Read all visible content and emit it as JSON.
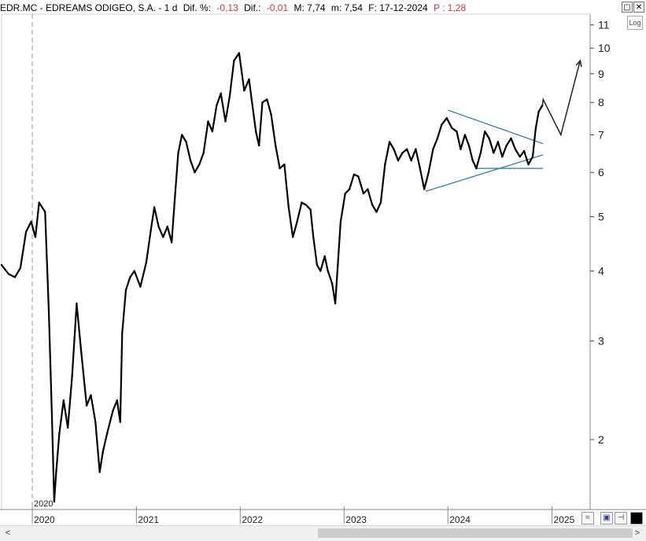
{
  "header": {
    "symbol": "EDR.MC - EDREAMS ODIGEO, S.A. -  1 d",
    "dif_pct_label": "Dif. %:",
    "dif_pct": "-0,13",
    "dif_label": "Dif.:",
    "dif": "-0,01",
    "max": "M: 7,74",
    "min": "m: 7,54",
    "date": "F: 17-12-2024",
    "price": "P : 1,28"
  },
  "controls": {
    "log_button": "Log",
    "window_buttons": [
      "▢",
      "✕"
    ]
  },
  "colors": {
    "price": "#000000",
    "trendline": "#1f78b4",
    "negative": "#e0303a",
    "grid": "#cccccc"
  },
  "chart_data": {
    "type": "line",
    "title": "",
    "xlabel": "",
    "ylabel": "",
    "log_scale": true,
    "ylim": [
      1.5,
      11.5
    ],
    "y_ticks": [
      2,
      3,
      4,
      5,
      6,
      7,
      8,
      9,
      10,
      11
    ],
    "x_ticks": [
      "2020",
      "2021",
      "2022",
      "2023",
      "2024",
      "2025"
    ],
    "x_tick_dates": [
      "2020-01-01",
      "2021-01-01",
      "2022-01-01",
      "2023-01-01",
      "2024-01-01",
      "2025-01-01"
    ],
    "x_marker_label": "2020",
    "xlim": [
      "2019-09-15",
      "2025-05-15"
    ],
    "grid": true,
    "series": [
      {
        "values": [
          [
            "2019-09-15",
            4.1
          ],
          [
            "2019-10-10",
            3.95
          ],
          [
            "2019-11-01",
            3.9
          ],
          [
            "2019-11-20",
            4.05
          ],
          [
            "2019-12-10",
            4.7
          ],
          [
            "2019-12-28",
            4.9
          ],
          [
            "2020-01-12",
            4.6
          ],
          [
            "2020-01-25",
            5.3
          ],
          [
            "2020-02-15",
            5.1
          ],
          [
            "2020-02-28",
            3.4
          ],
          [
            "2020-03-10",
            2.2
          ],
          [
            "2020-03-18",
            1.55
          ],
          [
            "2020-03-25",
            1.75
          ],
          [
            "2020-04-05",
            2.05
          ],
          [
            "2020-04-20",
            2.35
          ],
          [
            "2020-05-05",
            2.1
          ],
          [
            "2020-05-20",
            2.6
          ],
          [
            "2020-06-05",
            3.5
          ],
          [
            "2020-06-20",
            2.9
          ],
          [
            "2020-07-10",
            2.3
          ],
          [
            "2020-07-25",
            2.4
          ],
          [
            "2020-08-10",
            2.15
          ],
          [
            "2020-08-25",
            1.75
          ],
          [
            "2020-09-05",
            1.9
          ],
          [
            "2020-09-20",
            2.05
          ],
          [
            "2020-10-10",
            2.25
          ],
          [
            "2020-10-25",
            2.35
          ],
          [
            "2020-11-05",
            2.15
          ],
          [
            "2020-11-12",
            3.1
          ],
          [
            "2020-11-25",
            3.7
          ],
          [
            "2020-12-10",
            3.9
          ],
          [
            "2020-12-25",
            4.0
          ],
          [
            "2021-01-15",
            3.75
          ],
          [
            "2021-02-05",
            4.15
          ],
          [
            "2021-02-20",
            4.7
          ],
          [
            "2021-03-05",
            5.2
          ],
          [
            "2021-03-20",
            4.8
          ],
          [
            "2021-04-05",
            4.6
          ],
          [
            "2021-04-20",
            4.8
          ],
          [
            "2021-05-05",
            4.5
          ],
          [
            "2021-05-15",
            5.3
          ],
          [
            "2021-05-28",
            6.5
          ],
          [
            "2021-06-10",
            7.0
          ],
          [
            "2021-06-25",
            6.8
          ],
          [
            "2021-07-10",
            6.3
          ],
          [
            "2021-07-25",
            6.0
          ],
          [
            "2021-08-10",
            6.2
          ],
          [
            "2021-08-25",
            6.5
          ],
          [
            "2021-09-10",
            7.4
          ],
          [
            "2021-09-25",
            7.1
          ],
          [
            "2021-10-10",
            7.9
          ],
          [
            "2021-10-25",
            8.3
          ],
          [
            "2021-11-10",
            7.4
          ],
          [
            "2021-11-25",
            8.2
          ],
          [
            "2021-12-10",
            9.5
          ],
          [
            "2021-12-28",
            9.8
          ],
          [
            "2022-01-15",
            8.4
          ],
          [
            "2022-02-01",
            8.8
          ],
          [
            "2022-02-10",
            8.1
          ],
          [
            "2022-02-25",
            7.1
          ],
          [
            "2022-03-08",
            6.7
          ],
          [
            "2022-03-20",
            8.0
          ],
          [
            "2022-04-05",
            8.1
          ],
          [
            "2022-04-20",
            7.6
          ],
          [
            "2022-05-05",
            6.7
          ],
          [
            "2022-05-20",
            6.1
          ],
          [
            "2022-06-05",
            6.2
          ],
          [
            "2022-06-20",
            5.2
          ],
          [
            "2022-07-05",
            4.6
          ],
          [
            "2022-07-20",
            4.9
          ],
          [
            "2022-08-05",
            5.3
          ],
          [
            "2022-08-20",
            5.25
          ],
          [
            "2022-09-05",
            5.15
          ],
          [
            "2022-09-15",
            4.6
          ],
          [
            "2022-09-28",
            4.1
          ],
          [
            "2022-10-10",
            4.0
          ],
          [
            "2022-10-25",
            4.25
          ],
          [
            "2022-11-05",
            4.0
          ],
          [
            "2022-11-20",
            3.8
          ],
          [
            "2022-12-01",
            3.5
          ],
          [
            "2022-12-10",
            4.1
          ],
          [
            "2022-12-20",
            4.9
          ],
          [
            "2023-01-05",
            5.5
          ],
          [
            "2023-01-20",
            5.6
          ],
          [
            "2023-02-05",
            5.95
          ],
          [
            "2023-02-20",
            5.9
          ],
          [
            "2023-03-10",
            5.5
          ],
          [
            "2023-03-25",
            5.6
          ],
          [
            "2023-04-10",
            5.25
          ],
          [
            "2023-04-25",
            5.1
          ],
          [
            "2023-05-10",
            5.3
          ],
          [
            "2023-05-25",
            6.2
          ],
          [
            "2023-06-10",
            6.8
          ],
          [
            "2023-06-25",
            6.6
          ],
          [
            "2023-07-10",
            6.3
          ],
          [
            "2023-07-25",
            6.5
          ],
          [
            "2023-08-10",
            6.6
          ],
          [
            "2023-08-25",
            6.3
          ],
          [
            "2023-09-10",
            6.6
          ],
          [
            "2023-09-25",
            6.1
          ],
          [
            "2023-10-10",
            5.6
          ],
          [
            "2023-10-25",
            6.0
          ],
          [
            "2023-11-10",
            6.6
          ],
          [
            "2023-11-25",
            6.9
          ],
          [
            "2023-12-10",
            7.3
          ],
          [
            "2023-12-28",
            7.5
          ],
          [
            "2024-01-15",
            7.2
          ],
          [
            "2024-02-01",
            7.1
          ],
          [
            "2024-02-15",
            6.6
          ],
          [
            "2024-03-01",
            7.0
          ],
          [
            "2024-03-15",
            6.7
          ],
          [
            "2024-03-28",
            6.3
          ],
          [
            "2024-04-10",
            6.1
          ],
          [
            "2024-04-25",
            6.5
          ],
          [
            "2024-05-10",
            7.1
          ],
          [
            "2024-05-25",
            6.9
          ],
          [
            "2024-06-10",
            6.5
          ],
          [
            "2024-06-25",
            6.8
          ],
          [
            "2024-07-10",
            6.4
          ],
          [
            "2024-07-25",
            6.7
          ],
          [
            "2024-08-10",
            6.9
          ],
          [
            "2024-08-25",
            6.6
          ],
          [
            "2024-09-10",
            6.4
          ],
          [
            "2024-09-25",
            6.55
          ],
          [
            "2024-10-10",
            6.2
          ],
          [
            "2024-10-25",
            6.4
          ],
          [
            "2024-11-05",
            7.2
          ],
          [
            "2024-11-15",
            7.7
          ],
          [
            "2024-11-28",
            7.9
          ]
        ]
      }
    ],
    "annotations": {
      "upper_trendline": [
        [
          "2024-01-01",
          7.75
        ],
        [
          "2024-12-01",
          6.75
        ]
      ],
      "lower_trendline": [
        [
          "2023-10-15",
          5.55
        ],
        [
          "2024-12-01",
          6.45
        ]
      ],
      "support_line": [
        [
          "2024-04-10",
          6.1
        ],
        [
          "2024-12-01",
          6.1
        ]
      ],
      "projection": [
        [
          "2024-11-28",
          7.9
        ],
        [
          "2024-12-01",
          8.1
        ],
        [
          "2025-02-01",
          7.0
        ],
        [
          "2025-04-10",
          9.5
        ]
      ]
    }
  },
  "scrollbar": {
    "left_arrow": "<",
    "right_arrow": ">"
  }
}
